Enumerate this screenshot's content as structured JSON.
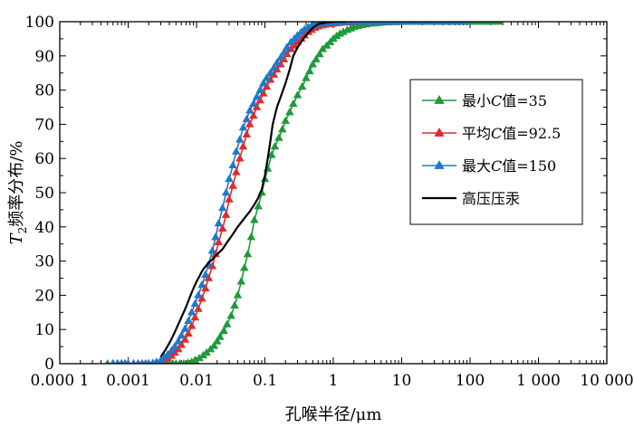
{
  "chart_data": {
    "type": "line",
    "xscale": "log",
    "xlim": [
      0.0001,
      10000
    ],
    "ylim": [
      0,
      100
    ],
    "xticks": [
      0.0001,
      0.001,
      0.01,
      0.1,
      1,
      10,
      100,
      1000,
      10000
    ],
    "xtick_labels": [
      "0.000 1",
      "0.001",
      "0.01",
      "0.1",
      "1",
      "10",
      "100",
      "1 000",
      "10 000"
    ],
    "yticks": [
      0,
      10,
      20,
      30,
      40,
      50,
      60,
      70,
      80,
      90,
      100
    ],
    "ytick_labels": [
      "0",
      "10",
      "20",
      "30",
      "40",
      "50",
      "60",
      "70",
      "80",
      "90",
      "100"
    ],
    "xlabel": "孔喉半径/μm",
    "ylabel_main": "T",
    "ylabel_sub": "2",
    "ylabel_rest": "频率分布/%",
    "legend_position": "center-right",
    "series": [
      {
        "name": "最小C值=35",
        "color": "#1e9a3a",
        "marker": "triangle",
        "x": [
          0.0005,
          0.0006,
          0.0007,
          0.0008,
          0.0009,
          0.001,
          0.0012,
          0.0014,
          0.0016,
          0.0018,
          0.002,
          0.0023,
          0.0026,
          0.003,
          0.0035,
          0.004,
          0.0045,
          0.005,
          0.0057,
          0.0065,
          0.0075,
          0.0085,
          0.0095,
          0.011,
          0.0125,
          0.014,
          0.016,
          0.018,
          0.02,
          0.022,
          0.025,
          0.028,
          0.032,
          0.036,
          0.04,
          0.045,
          0.05,
          0.056,
          0.063,
          0.07,
          0.08,
          0.09,
          0.1,
          0.11,
          0.125,
          0.14,
          0.16,
          0.18,
          0.2,
          0.23,
          0.26,
          0.3,
          0.35,
          0.4,
          0.45,
          0.5,
          0.56,
          0.63,
          0.7,
          0.8,
          0.9,
          1.0,
          1.12,
          1.25,
          1.4,
          1.6,
          1.8,
          2.0,
          2.3,
          2.6,
          3.0,
          3.5,
          4.0,
          4.5,
          5.0,
          5.6,
          6.3,
          7.0,
          8.0,
          9.0,
          10,
          12,
          14,
          16,
          18,
          20,
          23,
          26,
          30,
          35,
          40,
          45,
          50,
          57,
          65,
          75,
          85,
          95,
          110,
          125,
          140,
          160,
          180,
          200,
          230,
          260
        ],
        "values": [
          0,
          0,
          0,
          0,
          0,
          0,
          0,
          0,
          0,
          0,
          0,
          0,
          0,
          0,
          0,
          0,
          0,
          0,
          0,
          0,
          0.2,
          0.5,
          1,
          1.6,
          2.4,
          3.2,
          4.2,
          5.2,
          6.5,
          7.8,
          9.6,
          11.5,
          14,
          17,
          20,
          24,
          28,
          32,
          37,
          42,
          46,
          50,
          54,
          57,
          61,
          63.5,
          66,
          68.5,
          71,
          73.5,
          76,
          78.5,
          81,
          83.5,
          85.5,
          87.5,
          89,
          90.5,
          92,
          93,
          94,
          95,
          95.8,
          96.5,
          97,
          97.6,
          98,
          98.4,
          98.7,
          99,
          99.2,
          99.4,
          99.5,
          99.6,
          99.7,
          99.8,
          99.8,
          99.9,
          99.9,
          99.9,
          100,
          100,
          100,
          100,
          100,
          100,
          100,
          100,
          100,
          100,
          100,
          100,
          100,
          100,
          100,
          100,
          100,
          100,
          100,
          100,
          100,
          100,
          100,
          100,
          100,
          100
        ]
      },
      {
        "name": "平均C值=92.5",
        "color": "#e02b2b",
        "marker": "triangle",
        "x": [
          0.0006,
          0.0007,
          0.0008,
          0.0009,
          0.001,
          0.0012,
          0.0014,
          0.0016,
          0.0018,
          0.002,
          0.0023,
          0.0026,
          0.003,
          0.0034,
          0.0038,
          0.0043,
          0.0048,
          0.0054,
          0.006,
          0.0068,
          0.0076,
          0.0085,
          0.0095,
          0.0106,
          0.012,
          0.0135,
          0.015,
          0.017,
          0.019,
          0.021,
          0.024,
          0.027,
          0.03,
          0.034,
          0.038,
          0.043,
          0.048,
          0.054,
          0.06,
          0.068,
          0.076,
          0.085,
          0.095,
          0.106,
          0.12,
          0.135,
          0.15,
          0.17,
          0.19,
          0.21,
          0.24,
          0.27,
          0.3,
          0.34,
          0.38,
          0.43,
          0.48,
          0.54,
          0.6,
          0.68,
          0.76,
          0.85,
          0.95,
          1.06,
          1.2,
          1.35,
          1.5,
          1.7,
          1.9,
          2.1,
          2.4,
          2.7,
          3.0,
          3.5,
          4.0,
          4.5,
          5.0,
          5.7,
          6.5,
          7.5,
          8.5,
          10,
          12,
          14,
          16,
          18,
          20,
          24,
          28,
          32,
          37,
          42,
          48,
          55,
          62,
          70,
          80
        ],
        "values": [
          0,
          0,
          0,
          0,
          0,
          0,
          0,
          0,
          0,
          0,
          0,
          0.2,
          0.5,
          1,
          1.6,
          2.3,
          3.2,
          4.2,
          5.5,
          7,
          8.8,
          11,
          13.5,
          16,
          19,
          22,
          25,
          28.5,
          32,
          35.5,
          39.5,
          43.5,
          48,
          52,
          56,
          60,
          63.5,
          67,
          70,
          72.5,
          75,
          77,
          79,
          81,
          83,
          84.5,
          86,
          87.5,
          89,
          90.5,
          92,
          93,
          94,
          95,
          96,
          97,
          97.6,
          98.2,
          98.6,
          98.9,
          99.1,
          99.3,
          99.4,
          99.5,
          99.6,
          99.7,
          99.8,
          99.8,
          99.9,
          99.9,
          99.9,
          100,
          100,
          100,
          100,
          100,
          100,
          100,
          100,
          100,
          100,
          100,
          100,
          100,
          100,
          100,
          100,
          100,
          100,
          100,
          100,
          100,
          100,
          100,
          100,
          100,
          100
        ]
      },
      {
        "name": "最大C值=150",
        "color": "#1f78c8",
        "marker": "triangle",
        "x": [
          0.0006,
          0.0007,
          0.0008,
          0.0009,
          0.001,
          0.0012,
          0.0014,
          0.0016,
          0.0018,
          0.002,
          0.0023,
          0.0026,
          0.003,
          0.0034,
          0.0038,
          0.0043,
          0.0048,
          0.0054,
          0.006,
          0.0068,
          0.0076,
          0.0085,
          0.0095,
          0.0106,
          0.012,
          0.0135,
          0.015,
          0.017,
          0.019,
          0.021,
          0.024,
          0.027,
          0.03,
          0.034,
          0.038,
          0.043,
          0.048,
          0.054,
          0.06,
          0.068,
          0.076,
          0.085,
          0.095,
          0.106,
          0.12,
          0.135,
          0.15,
          0.17,
          0.19,
          0.21,
          0.24,
          0.27,
          0.3,
          0.34,
          0.38,
          0.43,
          0.48,
          0.54,
          0.6,
          0.68,
          0.76,
          0.85,
          0.95,
          1.06,
          1.2,
          1.35,
          1.5,
          1.7,
          1.9,
          2.1,
          2.4,
          2.7,
          3.0,
          3.5,
          4.0,
          4.5,
          5.0,
          5.7,
          6.5,
          7.5,
          8.5,
          10,
          12,
          14,
          16,
          18,
          20,
          24,
          28,
          32,
          37,
          42,
          48,
          55,
          62,
          70,
          80
        ],
        "values": [
          0,
          0,
          0,
          0,
          0,
          0,
          0,
          0,
          0,
          0,
          0.2,
          0.5,
          1,
          1.8,
          2.7,
          3.8,
          5,
          6.5,
          8.2,
          10.2,
          12.5,
          15,
          17.5,
          20,
          23,
          26,
          29,
          33,
          37,
          41,
          45.5,
          50,
          54,
          58,
          62,
          65.5,
          69,
          71.5,
          74,
          76,
          78,
          80,
          82,
          83.5,
          85,
          86.5,
          88,
          89.5,
          91,
          92.5,
          94,
          95,
          96,
          97,
          97.8,
          98.4,
          98.8,
          99.1,
          99.3,
          99.5,
          99.6,
          99.7,
          99.8,
          99.8,
          99.9,
          99.9,
          100,
          100,
          100,
          100,
          100,
          100,
          100,
          100,
          100,
          100,
          100,
          100,
          100,
          100,
          100,
          100,
          100,
          100,
          100,
          100,
          100,
          100,
          100,
          100,
          100,
          100,
          100,
          100,
          100,
          100,
          100
        ]
      },
      {
        "name": "高压压汞",
        "color": "#000000",
        "marker": "none",
        "x": [
          0.003,
          0.0035,
          0.004,
          0.0045,
          0.005,
          0.006,
          0.007,
          0.008,
          0.009,
          0.01,
          0.011,
          0.012,
          0.013,
          0.015,
          0.017,
          0.02,
          0.024,
          0.028,
          0.033,
          0.04,
          0.05,
          0.06,
          0.07,
          0.08,
          0.09,
          0.1,
          0.11,
          0.12,
          0.13,
          0.15,
          0.17,
          0.2,
          0.23,
          0.26,
          0.3,
          0.35,
          0.4,
          0.45,
          0.5,
          0.55,
          0.6,
          0.7,
          0.8,
          0.9,
          1.0,
          1.1,
          1.3,
          1.5
        ],
        "values": [
          2,
          4,
          6,
          8,
          10,
          13.5,
          16.5,
          19.5,
          22,
          24,
          25.5,
          27,
          28,
          29.5,
          30.5,
          32,
          33.5,
          35.5,
          37.5,
          40,
          42.5,
          44.5,
          46.5,
          48.5,
          51,
          55,
          60,
          65,
          70,
          75,
          78,
          82,
          86,
          90,
          92.5,
          94.5,
          96,
          97.2,
          98.2,
          98.8,
          99.3,
          99.6,
          99.8,
          99.9,
          100,
          100,
          100,
          100
        ]
      }
    ]
  }
}
